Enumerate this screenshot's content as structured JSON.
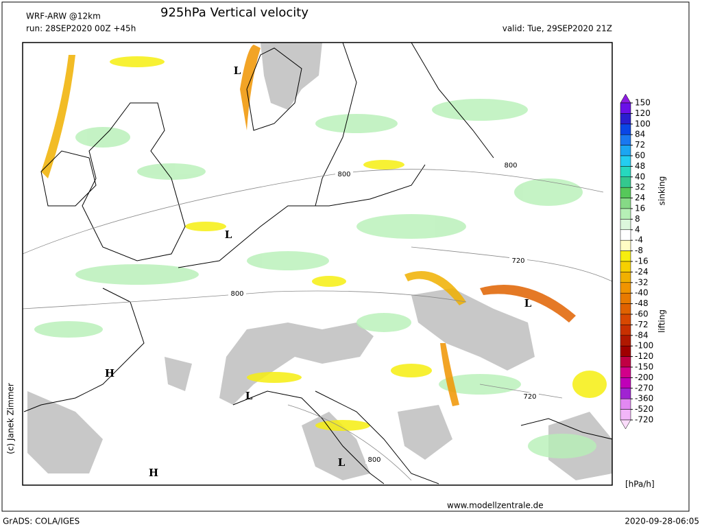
{
  "header": {
    "model": "WRF-ARW @12km",
    "title": "925hPa Vertical velocity",
    "run": "run: 28SEP2020 00Z +45h",
    "valid": "valid: Tue, 29SEP2020 21Z"
  },
  "map": {
    "contour_labels": [
      "800",
      "800",
      "800",
      "720",
      "720",
      "800"
    ],
    "pressure_centers": [
      "L",
      "L",
      "L",
      "L",
      "H",
      "H",
      "L"
    ],
    "credit": "(c) Janek Zimmer"
  },
  "colorbar": {
    "levels": [
      150,
      120,
      100,
      84,
      72,
      60,
      48,
      40,
      32,
      24,
      16,
      8,
      4,
      -4,
      -8,
      -16,
      -24,
      -32,
      -40,
      -48,
      -60,
      -72,
      -84,
      -100,
      -120,
      -150,
      -200,
      -270,
      -360,
      -520,
      -720
    ],
    "colors": [
      "#8c1ce0",
      "#6a10e8",
      "#2a1ed0",
      "#0a46e6",
      "#1a78f0",
      "#1ca6f2",
      "#24cdf0",
      "#26d8be",
      "#34c88e",
      "#56c85a",
      "#86da86",
      "#b6f0b6",
      "#dcf8dc",
      "#ffffff",
      "#fffcc4",
      "#f6ee10",
      "#f6d000",
      "#f0b000",
      "#f09400",
      "#e87a00",
      "#e06200",
      "#d84800",
      "#c83000",
      "#b01800",
      "#a00000",
      "#c00044",
      "#d2008a",
      "#c000b8",
      "#a024d2",
      "#e288f2",
      "#f2b6f8",
      "#fadcfa"
    ],
    "upper_label": "sinking",
    "lower_label": "lifting",
    "unit": "[hPa/h]"
  },
  "footer": {
    "website": "www.modellzentrale.de",
    "software": "GrADS: COLA/IGES",
    "timestamp": "2020-09-28-06:05"
  }
}
